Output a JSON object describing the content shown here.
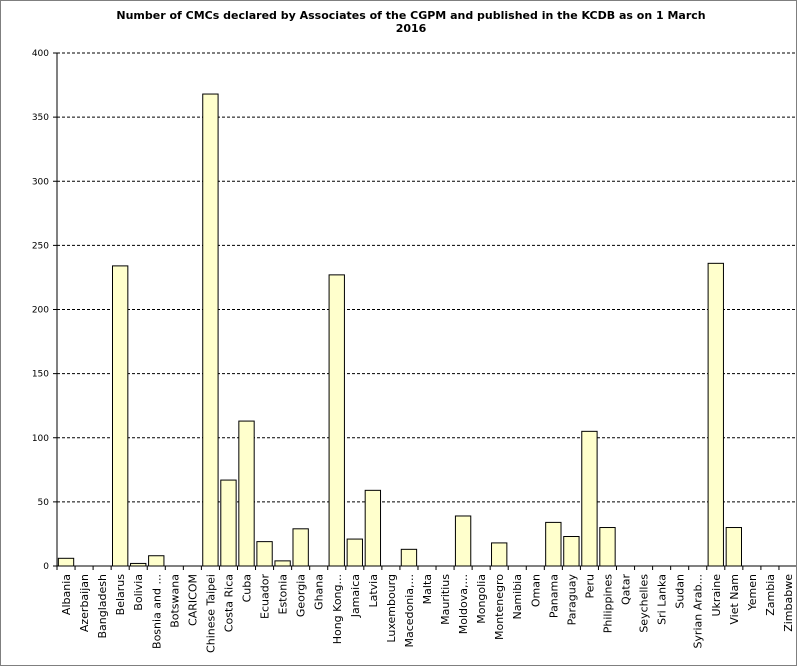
{
  "chart_data": {
    "type": "bar",
    "title": "Number of CMCs declared by Associates of the CGPM and published in the KCDB as on 1 March\n2016",
    "xlabel": "",
    "ylabel": "",
    "ylim": [
      0,
      400
    ],
    "yticks": [
      0,
      50,
      100,
      150,
      200,
      250,
      300,
      350,
      400
    ],
    "grid": true,
    "categories": [
      "Albania",
      "Azerbaijan",
      "Bangladesh",
      "Belarus",
      "Bolivia",
      "Bosnia and ...",
      "Botswana",
      "CARICOM",
      "Chinese Taipei",
      "Costa Rica",
      "Cuba",
      "Ecuador",
      "Estonia",
      "Georgia",
      "Ghana",
      "Hong Kong...",
      "Jamaica",
      "Latvia",
      "Luxembourg",
      "Macedonia,...",
      "Malta",
      "Mauritius",
      "Moldova,...",
      "Mongolia",
      "Montenegro",
      "Namibia",
      "Oman",
      "Panama",
      "Paraguay",
      "Peru",
      "Philippines",
      "Qatar",
      "Seychelles",
      "Sri Lanka",
      "Sudan",
      "Syrian Arab...",
      "Ukraine",
      "Viet Nam",
      "Yemen",
      "Zambia",
      "Zimbabwe"
    ],
    "values": [
      6,
      0,
      0,
      234,
      2,
      8,
      0,
      0,
      368,
      67,
      113,
      19,
      4,
      29,
      0,
      227,
      21,
      59,
      0,
      13,
      0,
      0,
      39,
      0,
      18,
      0,
      0,
      34,
      23,
      105,
      30,
      0,
      0,
      0,
      0,
      0,
      236,
      30,
      0,
      0,
      0
    ],
    "bar_color": "#ffffcc",
    "bar_border_color": "#000000",
    "grid_color": "#000000"
  }
}
